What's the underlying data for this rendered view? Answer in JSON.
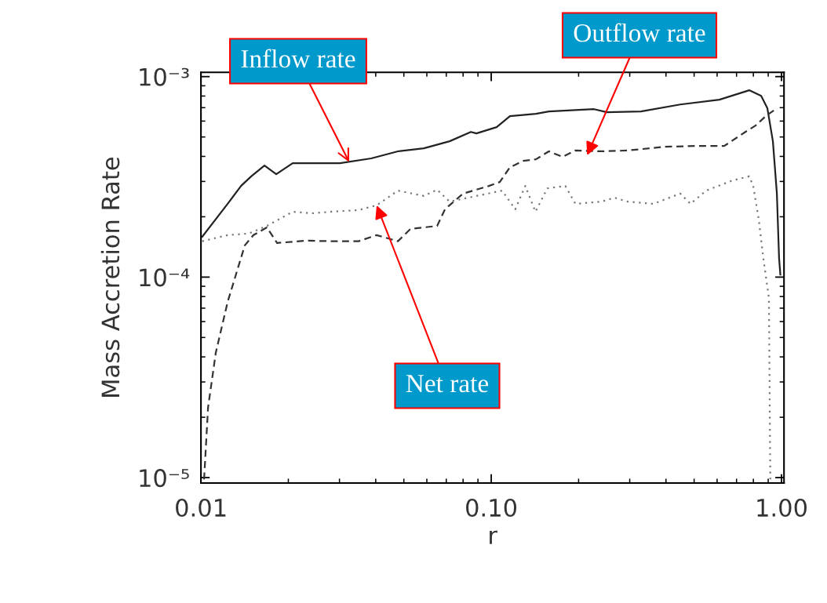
{
  "chart_data": {
    "type": "line",
    "xlabel": "r",
    "ylabel": "Mass Accretion Rate",
    "log": "xy",
    "grid": false,
    "legend": false,
    "xlim": [
      0.01,
      1.02
    ],
    "ylim": [
      9.4e-06,
      0.00105
    ],
    "xticks": [
      {
        "value": 0.01,
        "label": "0.01"
      },
      {
        "value": 0.1,
        "label": "0.10"
      },
      {
        "value": 1,
        "label": "1.00"
      }
    ],
    "yticks": [
      {
        "value": 1e-05,
        "label": "10⁻⁵"
      },
      {
        "value": 0.0001,
        "label": "10⁻⁴"
      },
      {
        "value": 0.001,
        "label": "10⁻³"
      }
    ],
    "series": [
      {
        "color": "#222222",
        "line_style": "solid",
        "x": [
          0.0101,
          0.01236,
          0.01374,
          0.0149,
          0.01655,
          0.01817,
          0.0207,
          0.0256,
          0.0301,
          0.0386,
          0.0477,
          0.0586,
          0.0719,
          0.0851,
          0.0889,
          0.1044,
          0.116,
          0.1426,
          0.158,
          0.226,
          0.25,
          0.328,
          0.448,
          0.611,
          0.774,
          0.851,
          0.894,
          0.934,
          0.964,
          0.981,
          0.991
        ],
        "values": [
          0.000159,
          0.000232,
          0.000285,
          0.000318,
          0.00036,
          0.000326,
          0.00037,
          0.00037,
          0.00037,
          0.000391,
          0.000424,
          0.000439,
          0.000476,
          0.00053,
          0.000521,
          0.00056,
          0.000635,
          0.000652,
          0.00067,
          0.000688,
          0.000664,
          0.00067,
          0.000726,
          0.000767,
          0.000855,
          0.000802,
          0.000695,
          0.000476,
          0.000261,
          0.000124,
          0.000103
        ]
      },
      {
        "color": "#333333",
        "line_style": "dashed",
        "x": [
          0.01025,
          0.01058,
          0.01125,
          0.01236,
          0.01416,
          0.01517,
          0.01687,
          0.01829,
          0.023,
          0.0283,
          0.0349,
          0.0403,
          0.0477,
          0.0527,
          0.0651,
          0.0693,
          0.08,
          0.0982,
          0.107,
          0.116,
          0.129,
          0.1426,
          0.158,
          0.176,
          0.195,
          0.24,
          0.295,
          0.396,
          0.517,
          0.635,
          0.751,
          0.814,
          0.889,
          0.946
        ],
        "values": [
          9.8e-06,
          2.24e-05,
          4.2e-05,
          7.53e-05,
          0.000144,
          0.000162,
          0.000177,
          0.000148,
          0.000152,
          0.000151,
          0.000151,
          0.000162,
          0.000151,
          0.000174,
          0.00018,
          0.000218,
          0.000261,
          0.000285,
          0.000298,
          0.000353,
          0.00038,
          0.000387,
          0.000424,
          0.000398,
          0.000428,
          0.000424,
          0.000428,
          0.000447,
          0.000451,
          0.000451,
          0.00053,
          0.00057,
          0.000641,
          0.000682
        ]
      },
      {
        "color": "#777777",
        "line_style": "dotted",
        "x": [
          0.0101,
          0.01236,
          0.01462,
          0.01687,
          0.0207,
          0.024,
          0.0283,
          0.0349,
          0.0403,
          0.0477,
          0.0586,
          0.0651,
          0.0719,
          0.0889,
          0.109,
          0.121,
          0.131,
          0.142,
          0.156,
          0.18,
          0.195,
          0.24,
          0.266,
          0.295,
          0.362,
          0.448,
          0.486,
          0.55,
          0.676,
          0.774,
          0.799,
          0.835,
          0.866,
          0.905,
          0.91,
          0.915
        ],
        "values": [
          0.000151,
          0.000162,
          0.000165,
          0.00018,
          0.000212,
          0.000208,
          0.000212,
          0.000216,
          0.000228,
          0.00027,
          0.000254,
          0.000273,
          0.000238,
          0.000254,
          0.00027,
          0.000218,
          0.000285,
          0.000212,
          0.000277,
          0.000285,
          0.000232,
          0.000238,
          0.000249,
          0.000238,
          0.000232,
          0.000261,
          0.000232,
          0.00027,
          0.000303,
          0.000318,
          0.000285,
          0.000194,
          0.000124,
          7.87e-05,
          2.68e-05,
          9.8e-06
        ]
      }
    ],
    "annotations": [
      {
        "text": "Inflow rate",
        "x": 0.0324,
        "y": 0.000375
      },
      {
        "text": "Outflow rate",
        "x": 0.214,
        "y": 0.000405
      },
      {
        "text": "Net rate",
        "x": 0.0403,
        "y": 0.000228
      }
    ]
  }
}
